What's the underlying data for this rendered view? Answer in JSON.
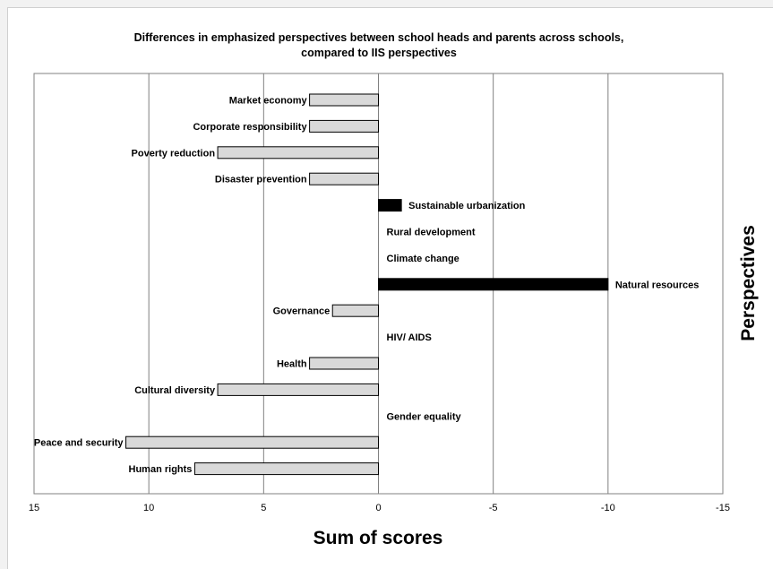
{
  "chart_data": {
    "type": "bar",
    "orientation": "horizontal",
    "title_line1": "Differences in emphasized perspectives between school heads and parents across schools,",
    "title_line2": "compared to IIS perspectives",
    "xlabel": "Sum of scores",
    "ylabel": "Perspectives",
    "xlim": [
      15,
      -15
    ],
    "x_reversed": true,
    "xticks": [
      "15",
      "10",
      "5",
      "0",
      "-5",
      "-10",
      "-15"
    ],
    "xtick_values": [
      15,
      10,
      5,
      0,
      -5,
      -10,
      -15
    ],
    "grid": "vertical",
    "categories": [
      "Market economy",
      "Corporate responsibility",
      "Poverty reduction",
      "Disaster prevention",
      "Sustainable urbanization",
      "Rural development",
      "Climate change",
      "Natural resources",
      "Governance",
      "HIV/ AIDS",
      "Health",
      "Cultural diversity",
      "Gender equality",
      "Peace and security",
      "Human rights"
    ],
    "values": [
      3,
      3,
      7,
      3,
      -1,
      0,
      0,
      -10,
      2,
      0,
      3,
      7,
      0,
      11,
      8
    ],
    "colors": {
      "positive_fill": "#d9d9d9",
      "negative_fill": "#000000",
      "bar_stroke": "#000000",
      "grid": "#808080"
    }
  }
}
